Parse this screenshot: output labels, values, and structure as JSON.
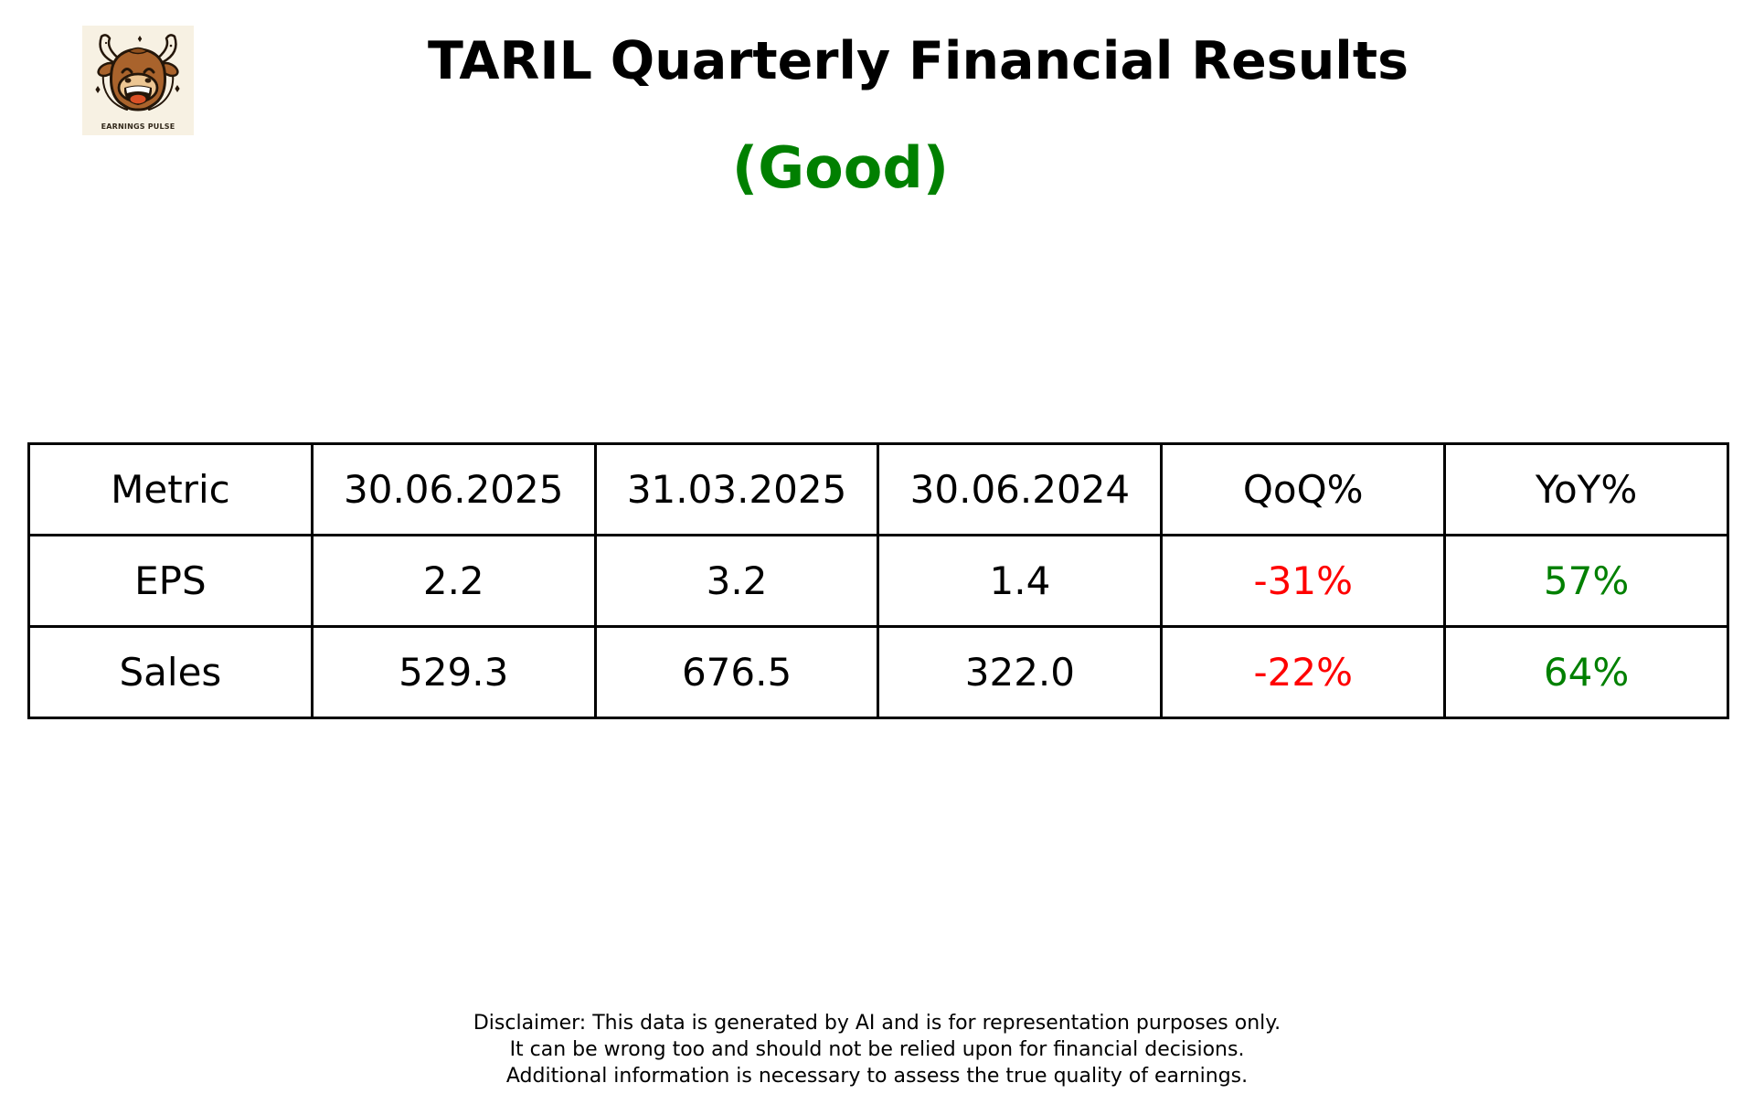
{
  "logo": {
    "text": "EARNINGS PULSE",
    "background_color": "#f7f1e3",
    "bull_color": "#a9632c",
    "outline_color": "#241609"
  },
  "header": {
    "quality_color": "#008000"
  },
  "chart_data": {
    "type": "table",
    "title": "TARIL Quarterly Financial Results",
    "subtitle": "(Good)",
    "columns": [
      "Metric",
      "30.06.2025",
      "31.03.2025",
      "30.06.2024",
      "QoQ%",
      "YoY%"
    ],
    "rows": [
      [
        "EPS",
        "2.2",
        "3.2",
        "1.4",
        "-31%",
        "57%"
      ],
      [
        "Sales",
        "529.3",
        "676.5",
        "322.0",
        "-22%",
        "64%"
      ]
    ],
    "cell_colors": {
      "qoq_column": "#ff0000",
      "yoy_column": "#008000"
    },
    "layout_hints": {
      "grid": "all-borders",
      "columns_equal_width": true
    }
  },
  "disclaimer": {
    "line1": "Disclaimer: This data is generated by AI and is for representation purposes only.",
    "line2": "It can be wrong too and should not be relied upon for financial decisions.",
    "line3": "Additional information is necessary to assess the true quality of earnings."
  }
}
